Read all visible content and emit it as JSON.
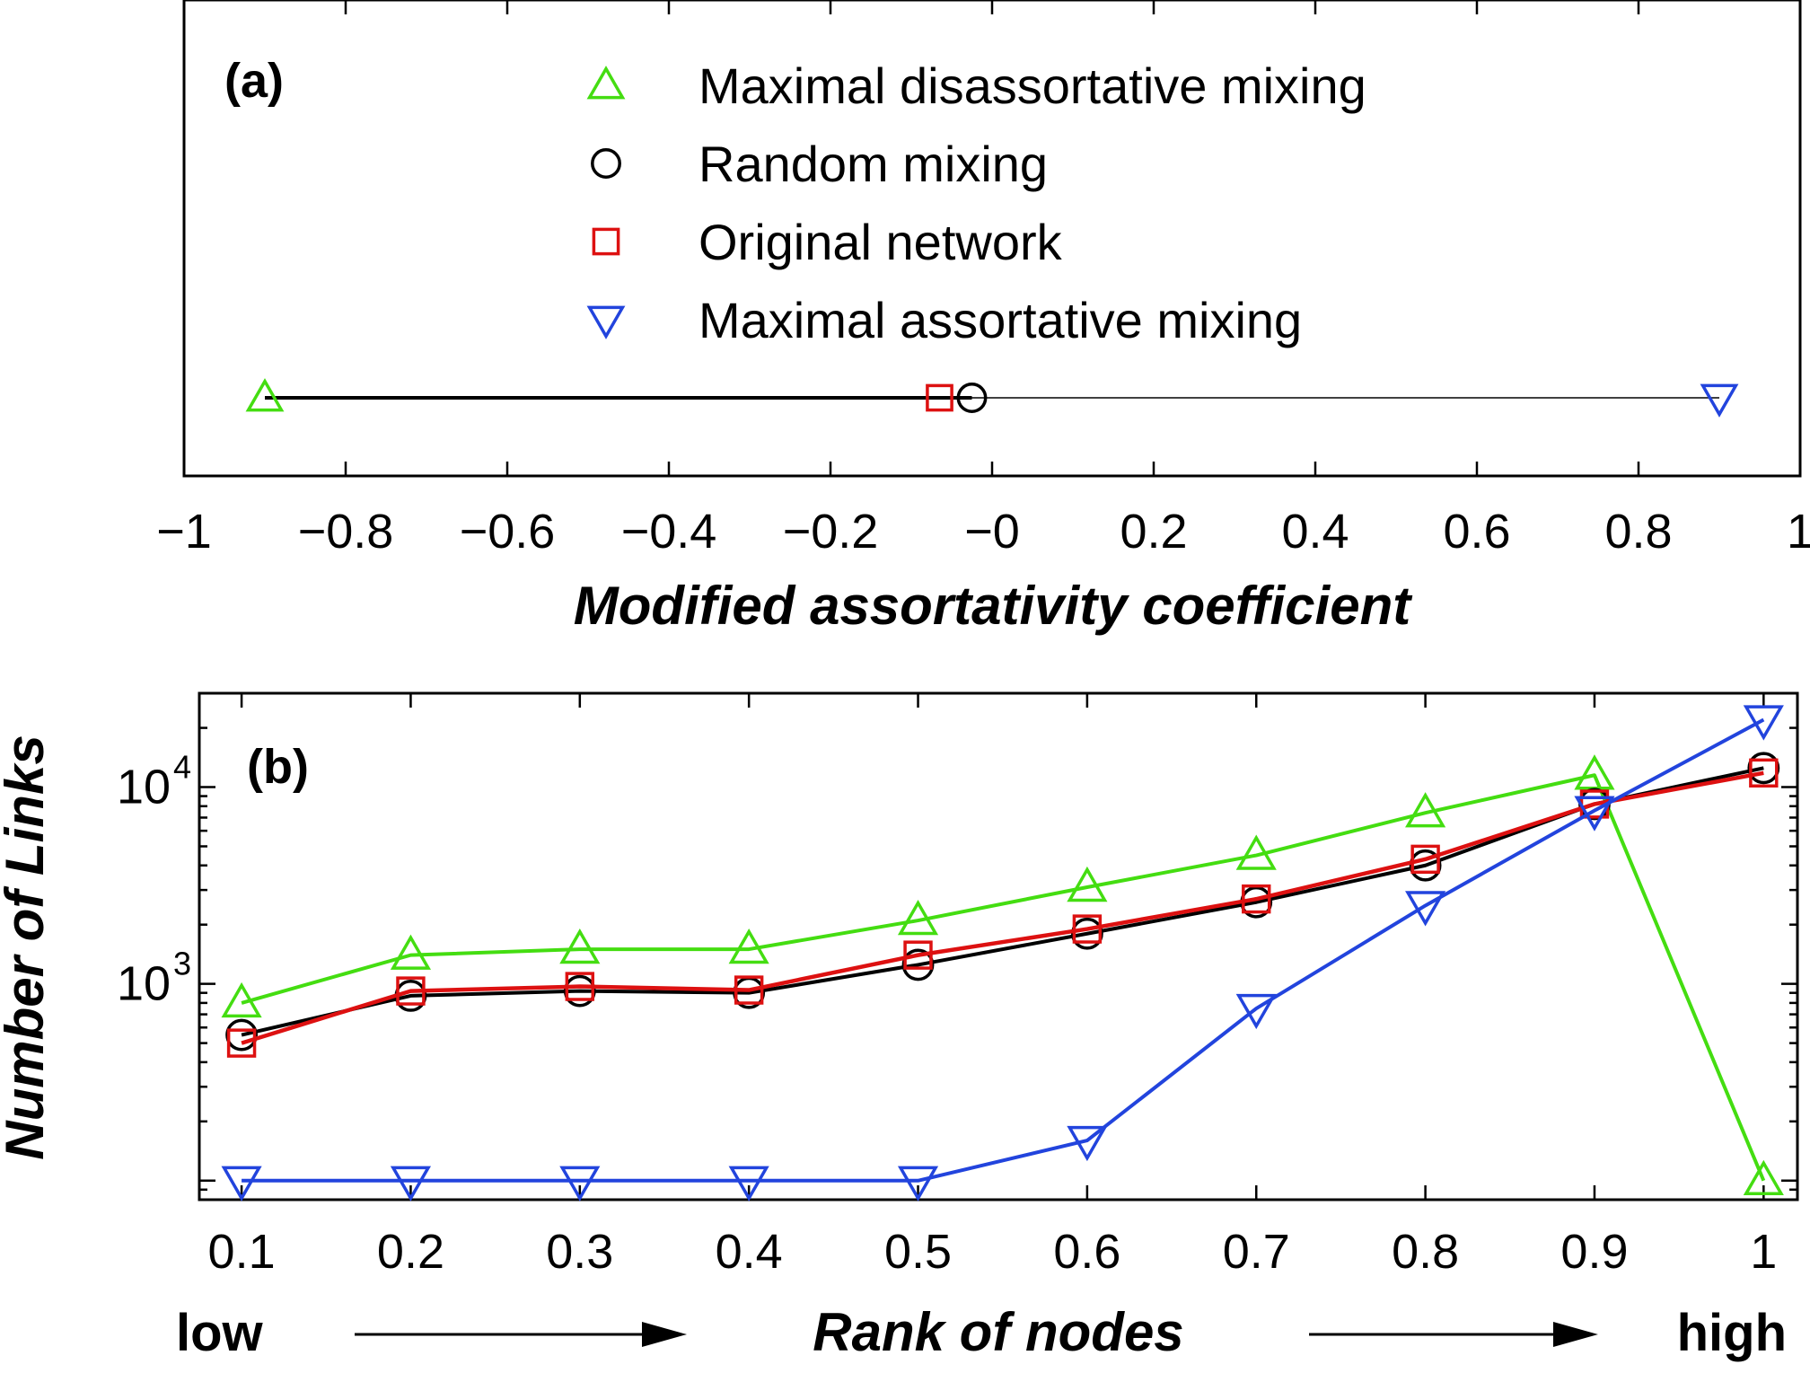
{
  "chart_data": [
    {
      "panel": "(a)",
      "type": "scatter",
      "xlabel": "Modified assortativity coefficient",
      "ylabel": "",
      "xlim": [
        -1,
        1
      ],
      "x_ticks": [
        -1,
        -0.8,
        -0.6,
        -0.4,
        -0.2,
        0,
        0.2,
        0.4,
        0.6,
        0.8,
        1
      ],
      "x_tick_labels": [
        "−1",
        "−0.8",
        "−0.6",
        "−0.4",
        "−0.2",
        "−0",
        "0.2",
        "0.4",
        "0.6",
        "0.8",
        "1"
      ],
      "legend_position": "top-right",
      "series": [
        {
          "name": "Maximal disassortative mixing",
          "x": -0.9,
          "color": "#44dd11",
          "marker": "triangle-up"
        },
        {
          "name": "Random mixing",
          "x": -0.025,
          "color": "#000000",
          "marker": "circle"
        },
        {
          "name": "Original network",
          "x": -0.065,
          "color": "#dd1111",
          "marker": "square"
        },
        {
          "name": "Maximal assortative mixing",
          "x": 0.9,
          "color": "#2244dd",
          "marker": "triangle-down"
        }
      ],
      "segments": [
        {
          "from": -0.9,
          "to": -0.025,
          "style": "thick"
        },
        {
          "from": -0.025,
          "to": 0.9,
          "style": "thin"
        }
      ]
    },
    {
      "panel": "(b)",
      "type": "line",
      "xlabel": "Rank of nodes",
      "xlabel_left": "low",
      "xlabel_right": "high",
      "ylabel": "Number of Links",
      "yscale": "log",
      "xlim": [
        0.075,
        1.02
      ],
      "ylim": [
        80,
        30000
      ],
      "x": [
        0.1,
        0.2,
        0.3,
        0.4,
        0.5,
        0.6,
        0.7,
        0.8,
        0.9,
        1
      ],
      "x_tick_labels": [
        "0.1",
        "0.2",
        "0.3",
        "0.4",
        "0.5",
        "0.6",
        "0.7",
        "0.8",
        "0.9",
        "1"
      ],
      "y_ticks": [
        1000,
        10000
      ],
      "y_tick_labels": [
        {
          "base": "10",
          "exp": "3"
        },
        {
          "base": "10",
          "exp": "4"
        }
      ],
      "series": [
        {
          "name": "Maximal disassortative mixing",
          "color": "#44dd11",
          "marker": "triangle-up",
          "values": [
            800,
            1400,
            1500,
            1500,
            2100,
            3100,
            4500,
            7400,
            11500,
            100
          ]
        },
        {
          "name": "Random mixing",
          "color": "#000000",
          "marker": "circle",
          "values": [
            550,
            870,
            920,
            900,
            1250,
            1800,
            2600,
            4000,
            8200,
            12500
          ]
        },
        {
          "name": "Original network",
          "color": "#dd1111",
          "marker": "square",
          "values": [
            500,
            920,
            970,
            930,
            1400,
            1900,
            2700,
            4300,
            8200,
            11800
          ]
        },
        {
          "name": "Maximal assortative mixing",
          "color": "#2244dd",
          "marker": "triangle-down",
          "values": [
            100,
            100,
            100,
            100,
            100,
            160,
            750,
            2500,
            7600,
            22000
          ]
        }
      ]
    }
  ]
}
